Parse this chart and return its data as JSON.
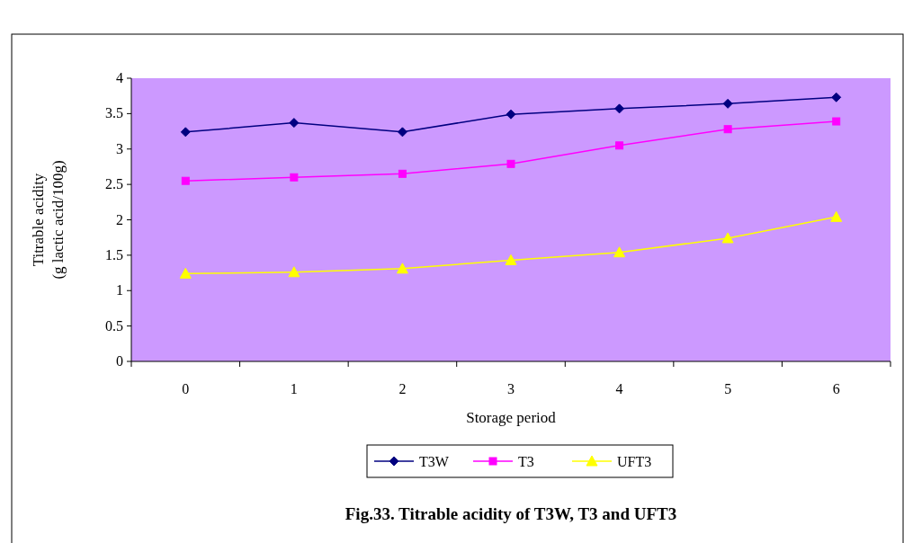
{
  "chart_data": {
    "type": "line",
    "title": "Fig.33. Titrable acidity of T3W, T3 and UFT3",
    "xlabel": "Storage period",
    "ylabel": "Titrable acidity\n(g lactic acid/100g)",
    "categories": [
      "0",
      "1",
      "2",
      "3",
      "4",
      "5",
      "6"
    ],
    "series": [
      {
        "name": "T3W",
        "color": "#000080",
        "marker": "diamond",
        "values": [
          3.24,
          3.37,
          3.24,
          3.49,
          3.57,
          3.64,
          3.73
        ]
      },
      {
        "name": "T3",
        "color": "#ff00ff",
        "marker": "square",
        "values": [
          2.55,
          2.6,
          2.65,
          2.79,
          3.05,
          3.28,
          3.39
        ]
      },
      {
        "name": "UFT3",
        "color": "#ffff00",
        "marker": "triangle",
        "values": [
          1.24,
          1.26,
          1.31,
          1.43,
          1.54,
          1.74,
          2.04
        ]
      }
    ],
    "ylim": [
      0,
      4
    ],
    "yticks": [
      0,
      0.5,
      1,
      1.5,
      2,
      2.5,
      3,
      3.5,
      4
    ],
    "grid": false,
    "legend": "bottom"
  }
}
